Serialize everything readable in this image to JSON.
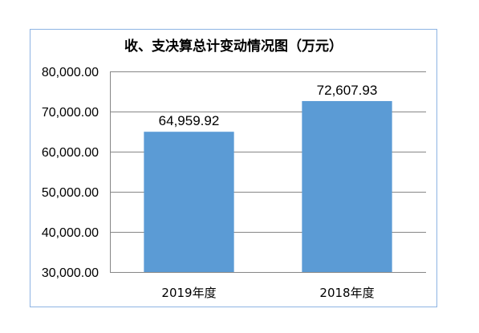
{
  "chart_data": {
    "type": "bar",
    "title": "收、支决算总计变动情况图（万元）",
    "categories": [
      "2019年度",
      "2018年度"
    ],
    "values": [
      64959.92,
      72607.93
    ],
    "data_labels": [
      "64,959.92",
      "72,607.93"
    ],
    "xlabel": "",
    "ylabel": "",
    "ylim": [
      30000,
      80000
    ],
    "yticks": [
      30000,
      40000,
      50000,
      60000,
      70000,
      80000
    ],
    "ytick_labels": [
      "30,000.00",
      "40,000.00",
      "50,000.00",
      "60,000.00",
      "70,000.00",
      "80,000.00"
    ],
    "grid": true,
    "legend": "none",
    "bar_color": "#5b9bd5",
    "grid_color": "#868686",
    "frame_color": "#8eb4e3"
  }
}
